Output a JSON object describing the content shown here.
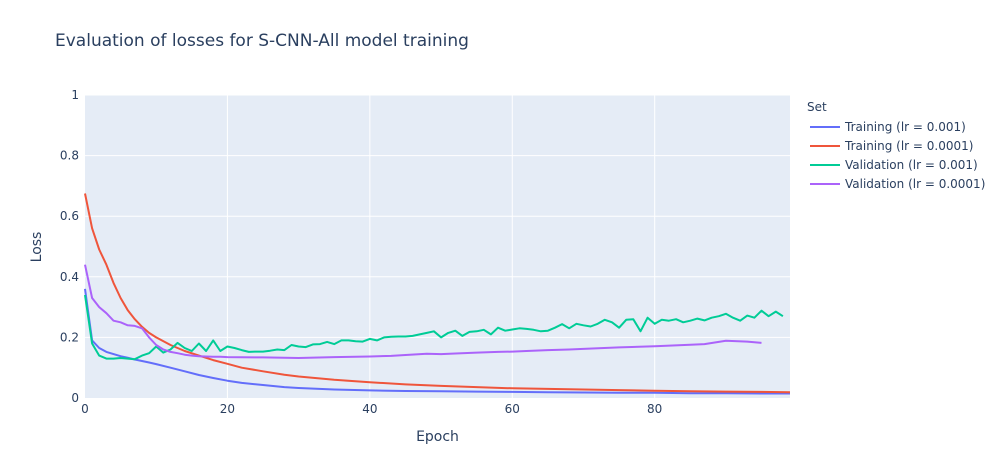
{
  "chart_data": {
    "type": "line",
    "title": "Evaluation of losses for S-CNN-All model training",
    "xlabel": "Epoch",
    "ylabel": "Loss",
    "xlim": [
      0,
      99
    ],
    "ylim": [
      0,
      1
    ],
    "x_ticks": [
      0,
      20,
      40,
      60,
      80
    ],
    "y_ticks": [
      0,
      0.2,
      0.4,
      0.6,
      0.8,
      1
    ],
    "y_tick_labels": [
      "0",
      "0.2",
      "0.4",
      "0.6",
      "0.8",
      "1"
    ],
    "grid": true,
    "plot_bgcolor": "#e5ecf6",
    "legend": {
      "title": "Set",
      "position": "right"
    },
    "series": [
      {
        "name": "Training (lr = 0.001)",
        "color": "#636efa",
        "x": [
          0,
          1,
          2,
          3,
          4,
          5,
          6,
          7,
          8,
          9,
          10,
          12,
          14,
          16,
          18,
          20,
          22,
          25,
          28,
          30,
          35,
          40,
          45,
          50,
          55,
          60,
          65,
          70,
          75,
          80,
          85,
          90,
          95,
          99
        ],
        "y": [
          0.36,
          0.19,
          0.165,
          0.152,
          0.145,
          0.138,
          0.133,
          0.127,
          0.122,
          0.117,
          0.112,
          0.1,
          0.088,
          0.076,
          0.066,
          0.057,
          0.05,
          0.043,
          0.036,
          0.033,
          0.028,
          0.025,
          0.023,
          0.022,
          0.021,
          0.02,
          0.019,
          0.018,
          0.017,
          0.017,
          0.016,
          0.016,
          0.015,
          0.015
        ]
      },
      {
        "name": "Training (lr = 0.0001)",
        "color": "#ef553b",
        "x": [
          0,
          1,
          2,
          3,
          4,
          5,
          6,
          7,
          8,
          9,
          10,
          12,
          14,
          16,
          18,
          20,
          22,
          25,
          28,
          30,
          35,
          40,
          45,
          50,
          55,
          60,
          65,
          70,
          75,
          80,
          85,
          90,
          95,
          99
        ],
        "y": [
          0.675,
          0.56,
          0.49,
          0.44,
          0.38,
          0.33,
          0.29,
          0.26,
          0.235,
          0.215,
          0.2,
          0.175,
          0.155,
          0.14,
          0.125,
          0.113,
          0.1,
          0.088,
          0.077,
          0.071,
          0.06,
          0.052,
          0.045,
          0.04,
          0.036,
          0.032,
          0.03,
          0.028,
          0.026,
          0.024,
          0.022,
          0.021,
          0.02,
          0.019
        ]
      },
      {
        "name": "Validation (lr = 0.001)",
        "color": "#00cc96",
        "x": [
          0,
          1,
          2,
          3,
          4,
          5,
          6,
          7,
          8,
          9,
          10,
          11,
          12,
          13,
          14,
          15,
          16,
          17,
          18,
          19,
          20,
          21,
          22,
          23,
          24,
          25,
          26,
          27,
          28,
          29,
          30,
          31,
          32,
          33,
          34,
          35,
          36,
          37,
          38,
          39,
          40,
          41,
          42,
          43,
          44,
          45,
          46,
          47,
          48,
          49,
          50,
          51,
          52,
          53,
          54,
          55,
          56,
          57,
          58,
          59,
          60,
          61,
          62,
          63,
          64,
          65,
          66,
          67,
          68,
          69,
          70,
          71,
          72,
          73,
          74,
          75,
          76,
          77,
          78,
          79,
          80,
          81,
          82,
          83,
          84,
          85,
          86,
          87,
          88,
          89,
          90,
          91,
          92,
          93,
          94,
          95,
          96,
          97,
          98
        ],
        "y": [
          0.34,
          0.18,
          0.14,
          0.13,
          0.13,
          0.132,
          0.13,
          0.128,
          0.14,
          0.148,
          0.17,
          0.15,
          0.16,
          0.182,
          0.165,
          0.155,
          0.18,
          0.155,
          0.19,
          0.155,
          0.17,
          0.165,
          0.158,
          0.152,
          0.153,
          0.153,
          0.156,
          0.16,
          0.158,
          0.175,
          0.17,
          0.168,
          0.177,
          0.178,
          0.185,
          0.178,
          0.19,
          0.19,
          0.187,
          0.186,
          0.195,
          0.19,
          0.2,
          0.202,
          0.203,
          0.203,
          0.205,
          0.21,
          0.215,
          0.22,
          0.2,
          0.215,
          0.222,
          0.205,
          0.218,
          0.22,
          0.225,
          0.21,
          0.232,
          0.222,
          0.226,
          0.23,
          0.228,
          0.225,
          0.22,
          0.222,
          0.232,
          0.244,
          0.23,
          0.245,
          0.24,
          0.236,
          0.245,
          0.258,
          0.25,
          0.232,
          0.258,
          0.26,
          0.22,
          0.265,
          0.245,
          0.258,
          0.255,
          0.26,
          0.25,
          0.255,
          0.262,
          0.256,
          0.265,
          0.27,
          0.278,
          0.265,
          0.255,
          0.272,
          0.265,
          0.288,
          0.27,
          0.285,
          0.27
        ]
      },
      {
        "name": "Validation (lr = 0.0001)",
        "color": "#ab63fa",
        "x": [
          0,
          1,
          2,
          3,
          4,
          5,
          6,
          7,
          8,
          9,
          10,
          11,
          12,
          13,
          14,
          15,
          16,
          17,
          18,
          19,
          20,
          25,
          30,
          35,
          40,
          43,
          45,
          48,
          50,
          52,
          55,
          58,
          60,
          62,
          65,
          68,
          70,
          75,
          80,
          85,
          87,
          90,
          93,
          95
        ],
        "y": [
          0.44,
          0.33,
          0.3,
          0.28,
          0.255,
          0.25,
          0.24,
          0.238,
          0.23,
          0.2,
          0.175,
          0.16,
          0.152,
          0.148,
          0.143,
          0.14,
          0.138,
          0.137,
          0.136,
          0.136,
          0.135,
          0.134,
          0.132,
          0.135,
          0.137,
          0.139,
          0.142,
          0.146,
          0.145,
          0.147,
          0.15,
          0.152,
          0.153,
          0.155,
          0.158,
          0.16,
          0.162,
          0.167,
          0.171,
          0.176,
          0.178,
          0.189,
          0.186,
          0.182
        ]
      }
    ]
  }
}
